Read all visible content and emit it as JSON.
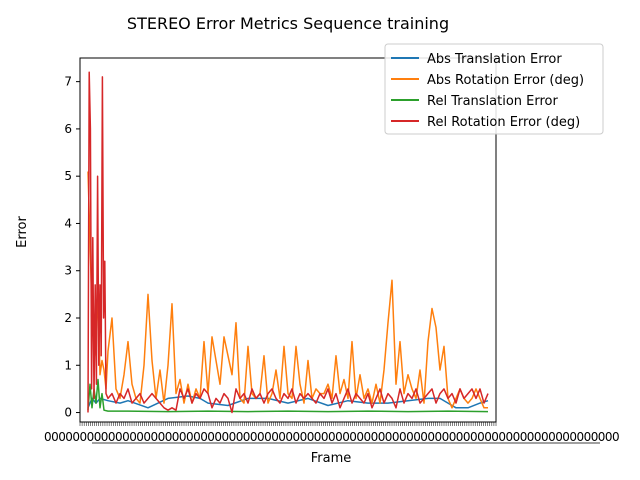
{
  "chart_data": {
    "type": "line",
    "title": "STEREO Error Metrics Sequence training",
    "xlabel": "Frame",
    "ylabel": "Error",
    "x_range": [
      0,
      100
    ],
    "ylim": [
      -0.2,
      7.5
    ],
    "yticks": [
      0,
      1,
      2,
      3,
      4,
      5,
      6,
      7
    ],
    "grid": false,
    "legend_position": "top-right",
    "x_tick_labels_note": "Frame tick labels are densely overlapping and unreadable",
    "series": [
      {
        "name": "Abs Translation Error",
        "color": "#1f77b4",
        "x": [
          0,
          1,
          2,
          3,
          5,
          8,
          10,
          15,
          20,
          25,
          28,
          30,
          35,
          40,
          45,
          50,
          55,
          60,
          65,
          70,
          75,
          80,
          85,
          88,
          90,
          92,
          95,
          98,
          100
        ],
        "values": [
          0.1,
          0.3,
          0.2,
          0.3,
          0.25,
          0.2,
          0.25,
          0.1,
          0.3,
          0.35,
          0.3,
          0.2,
          0.15,
          0.3,
          0.3,
          0.2,
          0.3,
          0.15,
          0.25,
          0.2,
          0.2,
          0.25,
          0.3,
          0.3,
          0.2,
          0.1,
          0.1,
          0.2,
          0.25
        ]
      },
      {
        "name": "Abs Rotation Error (deg)",
        "color": "#ff7f0e",
        "x": [
          0,
          0.5,
          1,
          1.5,
          2,
          2.5,
          3,
          3.5,
          4,
          4.5,
          5,
          6,
          7,
          8,
          9,
          10,
          11,
          12,
          13,
          14,
          15,
          16,
          17,
          18,
          19,
          20,
          21,
          22,
          23,
          24,
          25,
          26,
          27,
          28,
          29,
          30,
          31,
          32,
          33,
          34,
          35,
          36,
          37,
          38,
          39,
          40,
          41,
          42,
          43,
          44,
          45,
          46,
          47,
          48,
          49,
          50,
          51,
          52,
          53,
          54,
          55,
          56,
          57,
          58,
          59,
          60,
          61,
          62,
          63,
          64,
          65,
          66,
          67,
          68,
          69,
          70,
          71,
          72,
          73,
          74,
          75,
          76,
          77,
          78,
          79,
          80,
          81,
          82,
          83,
          84,
          85,
          86,
          87,
          88,
          89,
          90,
          91,
          92,
          93,
          94,
          95,
          96,
          97,
          98,
          99,
          100
        ],
        "values": [
          5.1,
          3.6,
          2.2,
          1.5,
          1.2,
          2.6,
          0.8,
          1.1,
          0.9,
          0.5,
          1.3,
          2.0,
          0.5,
          0.3,
          0.8,
          1.5,
          0.6,
          0.3,
          0.2,
          1.0,
          2.5,
          1.1,
          0.3,
          0.9,
          0.2,
          1.0,
          2.3,
          0.4,
          0.7,
          0.2,
          0.6,
          0.2,
          0.5,
          0.3,
          1.5,
          0.4,
          1.6,
          1.1,
          0.6,
          1.6,
          1.2,
          0.8,
          1.9,
          0.3,
          0.2,
          1.4,
          0.4,
          0.3,
          0.4,
          1.2,
          0.2,
          0.4,
          0.9,
          0.3,
          1.4,
          0.4,
          0.3,
          1.4,
          0.6,
          0.2,
          1.1,
          0.3,
          0.5,
          0.4,
          0.4,
          0.6,
          0.3,
          1.2,
          0.4,
          0.7,
          0.3,
          1.5,
          0.3,
          0.8,
          0.3,
          0.5,
          0.2,
          0.6,
          0.2,
          0.9,
          1.9,
          2.8,
          0.6,
          1.5,
          0.4,
          0.8,
          0.5,
          0.3,
          0.9,
          0.2,
          1.5,
          2.2,
          1.8,
          0.9,
          1.4,
          0.3,
          0.1,
          0.3,
          0.5,
          0.3,
          0.2,
          0.3,
          0.5,
          0.3,
          0.1,
          0.1
        ]
      },
      {
        "name": "Rel Translation Error",
        "color": "#2ca02c",
        "x": [
          0,
          0.5,
          1,
          1.5,
          2,
          2.5,
          3,
          3.5,
          4,
          5,
          10,
          20,
          30,
          40,
          50,
          60,
          70,
          80,
          90,
          100
        ],
        "values": [
          0.05,
          0.6,
          0.1,
          0.5,
          0.2,
          0.7,
          0.1,
          0.4,
          0.05,
          0.03,
          0.03,
          0.02,
          0.03,
          0.02,
          0.03,
          0.02,
          0.03,
          0.02,
          0.03,
          0.02
        ]
      },
      {
        "name": "Rel Rotation Error (deg)",
        "color": "#d62728",
        "x": [
          0,
          0.3,
          0.6,
          0.9,
          1.2,
          1.5,
          1.8,
          2.1,
          2.4,
          2.7,
          3.0,
          3.3,
          3.6,
          3.9,
          4.2,
          4.5,
          5,
          6,
          7,
          8,
          9,
          10,
          11,
          12,
          13,
          14,
          15,
          16,
          17,
          18,
          19,
          20,
          21,
          22,
          23,
          24,
          25,
          26,
          27,
          28,
          29,
          30,
          31,
          32,
          33,
          34,
          35,
          36,
          37,
          38,
          39,
          40,
          41,
          42,
          43,
          44,
          45,
          46,
          47,
          48,
          49,
          50,
          51,
          52,
          53,
          54,
          55,
          56,
          57,
          58,
          59,
          60,
          61,
          62,
          63,
          64,
          65,
          66,
          67,
          68,
          69,
          70,
          71,
          72,
          73,
          74,
          75,
          76,
          77,
          78,
          79,
          80,
          81,
          82,
          83,
          84,
          85,
          86,
          87,
          88,
          89,
          90,
          91,
          92,
          93,
          94,
          95,
          96,
          97,
          98,
          99,
          100
        ],
        "values": [
          0.0,
          7.2,
          6.0,
          0.5,
          3.7,
          0.3,
          2.7,
          0.6,
          5.0,
          1.0,
          2.7,
          1.2,
          7.1,
          2.0,
          3.2,
          0.4,
          0.3,
          0.4,
          0.2,
          0.4,
          0.3,
          0.5,
          0.2,
          0.3,
          0.4,
          0.2,
          0.3,
          0.4,
          0.3,
          0.2,
          0.1,
          0.05,
          0.1,
          0.05,
          0.5,
          0.3,
          0.5,
          0.2,
          0.4,
          0.3,
          0.5,
          0.4,
          0.1,
          0.3,
          0.2,
          0.4,
          0.3,
          0.0,
          0.5,
          0.3,
          0.4,
          0.2,
          0.5,
          0.3,
          0.4,
          0.2,
          0.4,
          0.5,
          0.3,
          0.2,
          0.4,
          0.3,
          0.5,
          0.2,
          0.4,
          0.3,
          0.4,
          0.3,
          0.2,
          0.4,
          0.3,
          0.5,
          0.2,
          0.4,
          0.1,
          0.3,
          0.5,
          0.2,
          0.4,
          0.3,
          0.2,
          0.4,
          0.1,
          0.3,
          0.5,
          0.2,
          0.4,
          0.3,
          0.1,
          0.5,
          0.2,
          0.4,
          0.3,
          0.5,
          0.2,
          0.3,
          0.4,
          0.5,
          0.2,
          0.4,
          0.5,
          0.3,
          0.4,
          0.2,
          0.5,
          0.3,
          0.4,
          0.5,
          0.3,
          0.5,
          0.2,
          0.4
        ]
      }
    ]
  }
}
